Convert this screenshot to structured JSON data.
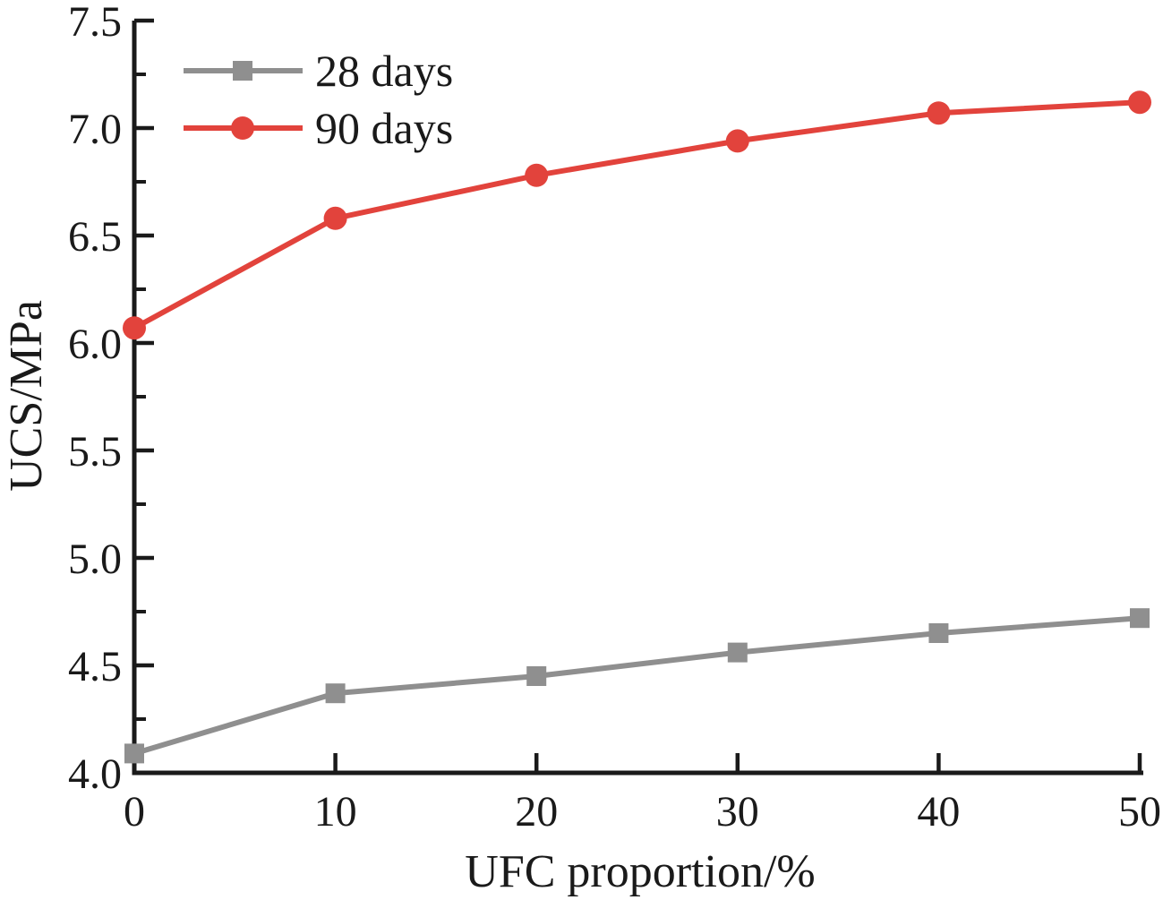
{
  "figure": {
    "background": "#ffffff"
  },
  "chart_data": {
    "type": "line",
    "title": "",
    "xlabel": "UFC proportion/%",
    "ylabel": "UCS/MPa",
    "x": [
      0,
      10,
      20,
      30,
      40,
      50
    ],
    "x_tick_labels": [
      "0",
      "10",
      "20",
      "30",
      "40",
      "50"
    ],
    "y_ticks": [
      4.0,
      4.5,
      5.0,
      5.5,
      6.0,
      6.5,
      7.0,
      7.5
    ],
    "y_tick_labels": [
      "4.0",
      "4.5",
      "5.0",
      "5.5",
      "6.0",
      "6.5",
      "7.0",
      "7.5"
    ],
    "xlim": [
      0,
      50
    ],
    "ylim": [
      4.0,
      7.5
    ],
    "y_minor_tick_step": 0.25,
    "grid": false,
    "legend_position": "top-left",
    "axis_color": "#1a1a1a",
    "series": [
      {
        "name": "28 days",
        "marker": "square",
        "color": "#8f8f8f",
        "values": [
          4.09,
          4.37,
          4.45,
          4.56,
          4.65,
          4.72
        ]
      },
      {
        "name": "90 days",
        "marker": "circle",
        "color": "#e2433c",
        "values": [
          6.07,
          6.58,
          6.78,
          6.94,
          7.07,
          7.12
        ]
      }
    ]
  }
}
